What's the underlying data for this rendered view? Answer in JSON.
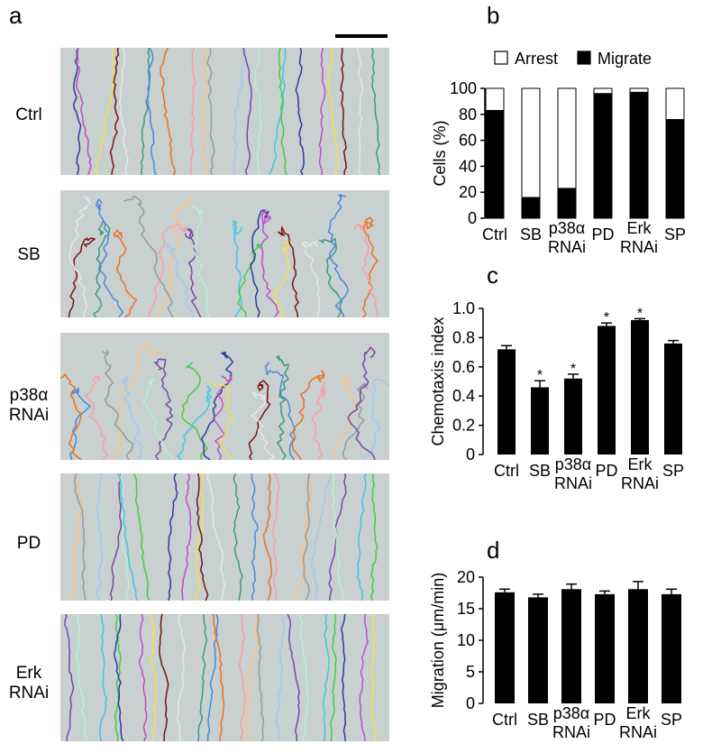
{
  "panels": {
    "a": "a",
    "b": "b",
    "c": "c",
    "d": "d"
  },
  "tracks": {
    "rows": [
      {
        "label_lines": [
          "Ctrl"
        ]
      },
      {
        "label_lines": [
          "SB"
        ]
      },
      {
        "label_lines": [
          "p38α",
          "RNAi"
        ]
      },
      {
        "label_lines": [
          "PD"
        ]
      },
      {
        "label_lines": [
          "Erk",
          "RNAi"
        ]
      }
    ],
    "colors": [
      "#2e3d9c",
      "#c04ec8",
      "#f5e24a",
      "#7a1414",
      "#e8e8e8",
      "#3a9c7c",
      "#4a8ad8",
      "#f07020",
      "#ff9aa8",
      "#ffc080",
      "#9a9a9a",
      "#a0c8f0",
      "#7a4aa0",
      "#b8f0d0",
      "#40c8e0",
      "#40d040"
    ]
  },
  "chart_data": [
    {
      "type": "bar",
      "categories": [
        "Ctrl",
        "SB",
        "p38α RNAi",
        "PD",
        "Erk RNAi",
        "SP"
      ],
      "category_lines": [
        [
          "Ctrl"
        ],
        [
          "SB"
        ],
        [
          "p38α",
          "RNAi"
        ],
        [
          "PD"
        ],
        [
          "Erk",
          "RNAi"
        ],
        [
          "SP"
        ]
      ],
      "stacked": true,
      "series": [
        {
          "name": "Arrest",
          "color": "#ffffff",
          "values": [
            17,
            84,
            77,
            4,
            3,
            24
          ]
        },
        {
          "name": "Migrate",
          "color": "#000000",
          "values": [
            83,
            16,
            23,
            96,
            97,
            76
          ]
        }
      ],
      "ylabel": "Cells (%)",
      "ylim": [
        0,
        100
      ],
      "yticks": [
        0,
        20,
        40,
        60,
        80,
        100
      ],
      "legend": "top"
    },
    {
      "type": "bar",
      "categories": [
        "Ctrl",
        "SB",
        "p38α RNAi",
        "PD",
        "Erk RNAi",
        "SP"
      ],
      "category_lines": [
        [
          "Ctrl"
        ],
        [
          "SB"
        ],
        [
          "p38α",
          "RNAi"
        ],
        [
          "PD"
        ],
        [
          "Erk",
          "RNAi"
        ],
        [
          "SP"
        ]
      ],
      "values": [
        0.72,
        0.46,
        0.52,
        0.88,
        0.92,
        0.76
      ],
      "errors": [
        0.025,
        0.045,
        0.03,
        0.02,
        0.01,
        0.02
      ],
      "significance": [
        "",
        "*",
        "*",
        "*",
        "*",
        ""
      ],
      "ylabel": "Chemotaxis index",
      "ylim": [
        0,
        1.0
      ],
      "yticks": [
        "0",
        "0.2",
        "0.4",
        "0.6",
        "0.8",
        "1.0"
      ]
    },
    {
      "type": "bar",
      "categories": [
        "Ctrl",
        "SB",
        "p38α RNAi",
        "PD",
        "Erk RNAi",
        "SP"
      ],
      "category_lines": [
        [
          "Ctrl"
        ],
        [
          "SB"
        ],
        [
          "p38α",
          "RNAi"
        ],
        [
          "PD"
        ],
        [
          "Erk",
          "RNAi"
        ],
        [
          "SP"
        ]
      ],
      "values": [
        17.6,
        16.8,
        18.1,
        17.3,
        18.1,
        17.3
      ],
      "errors": [
        0.5,
        0.5,
        0.8,
        0.5,
        1.2,
        0.8
      ],
      "ylabel": "Migration (μm/min)",
      "ylim": [
        0,
        20
      ],
      "yticks": [
        "0",
        "5",
        "10",
        "15",
        "20"
      ]
    }
  ]
}
